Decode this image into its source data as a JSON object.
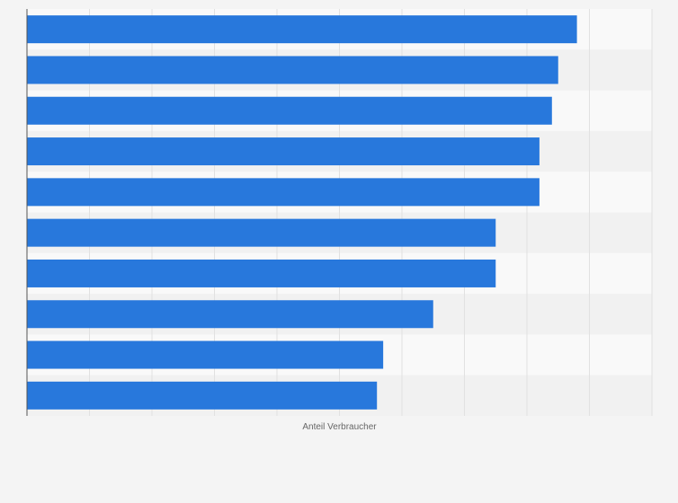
{
  "chart_data": {
    "type": "bar",
    "orientation": "horizontal",
    "title": "",
    "xlabel": "Anteil Verbraucher",
    "ylabel": "",
    "categories": [
      "",
      "",
      "",
      "",
      "",
      "",
      "",
      "",
      "",
      ""
    ],
    "values": [
      88,
      85,
      84,
      82,
      82,
      75,
      75,
      65,
      57,
      56
    ],
    "xlim": [
      0,
      100
    ],
    "grid": true,
    "legend": "none",
    "colors": {
      "bar": "#2878dc",
      "background": "#f4f4f4",
      "plot_band_light": "#f9f9f9",
      "plot_band_dark": "#f1f1f1",
      "grid": "#e1e1e1",
      "axis": "#555555",
      "axis_title": "#666666"
    }
  }
}
